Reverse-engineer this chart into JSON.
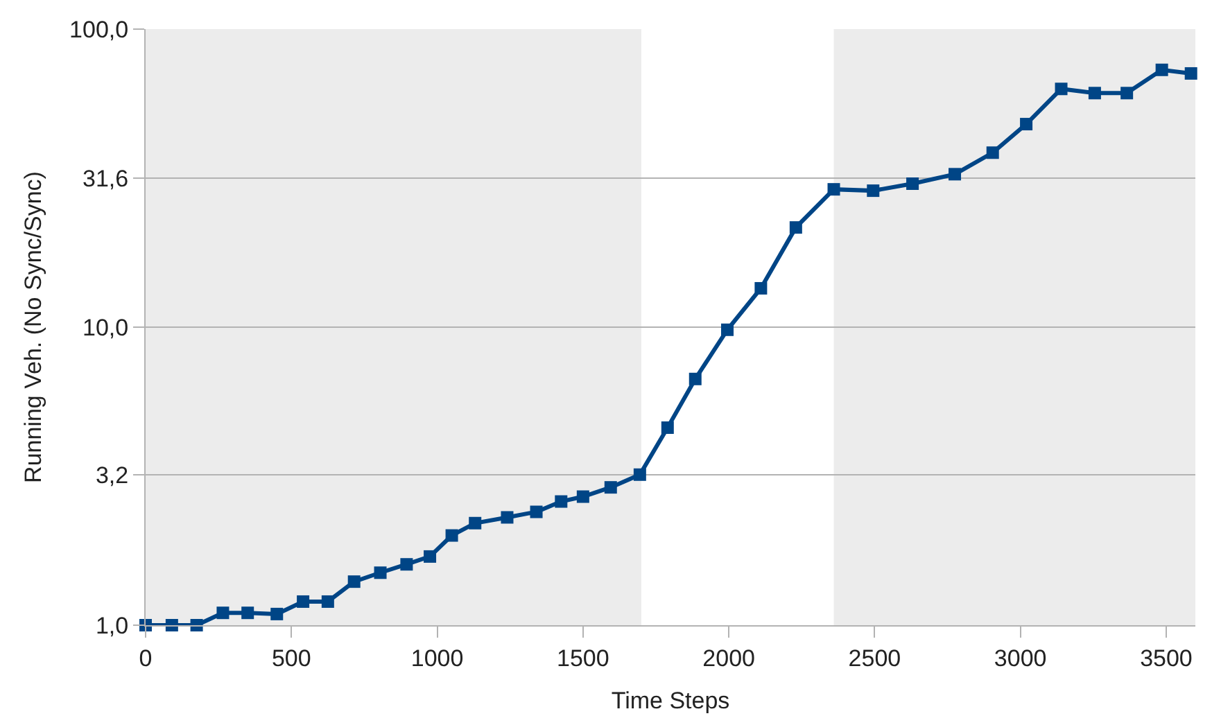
{
  "chart_data": {
    "type": "line",
    "xlabel": "Time Steps",
    "ylabel": "Running Veh. (No Sync/Sync)",
    "x": [
      0,
      90,
      175,
      265,
      350,
      450,
      540,
      625,
      715,
      805,
      895,
      975,
      1050,
      1130,
      1240,
      1340,
      1425,
      1500,
      1595,
      1695,
      1790,
      1885,
      1995,
      2110,
      2230,
      2360,
      2495,
      2630,
      2775,
      2905,
      3020,
      3140,
      3255,
      3365,
      3485,
      3585
    ],
    "series": [
      {
        "color": "#004586",
        "values": [
          1.0,
          1.0,
          1.0,
          1.1,
          1.1,
          1.09,
          1.2,
          1.2,
          1.4,
          1.5,
          1.6,
          1.7,
          2.0,
          2.2,
          2.3,
          2.4,
          2.6,
          2.7,
          2.9,
          3.2,
          4.6,
          6.7,
          9.8,
          13.5,
          21.6,
          29.0,
          28.7,
          30.3,
          32.6,
          38.5,
          48,
          63,
          61,
          61,
          73,
          71
        ]
      }
    ],
    "log": "y",
    "xlim": [
      0,
      3600
    ],
    "xticks": [
      0,
      500,
      1000,
      1500,
      2000,
      2500,
      3000,
      3500
    ],
    "ylim": [
      1,
      100
    ],
    "yticks": [
      {
        "value": 1,
        "label": "1,0"
      },
      {
        "value": 3.2,
        "label": "3,2"
      },
      {
        "value": 10,
        "label": "10,0"
      },
      {
        "value": 31.6,
        "label": "31,6"
      },
      {
        "value": 100,
        "label": "100,0"
      }
    ],
    "bands": [
      {
        "axis": "x",
        "from": 0,
        "to": 1700,
        "color": "#ececec"
      },
      {
        "axis": "x",
        "from": 2360,
        "to": 3600,
        "color": "#ececec"
      }
    ],
    "grid": "y",
    "marker": "square",
    "line_style": "solid"
  }
}
